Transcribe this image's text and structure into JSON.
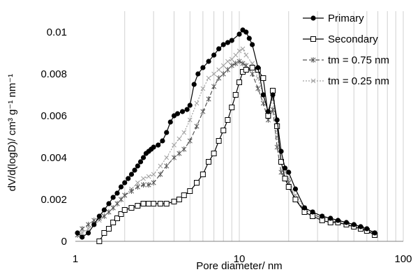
{
  "chart_data": {
    "type": "line",
    "xlabel": "Pore diameter/ nm",
    "ylabel": "dV/d(logD)/ cm³ g⁻¹ nm⁻¹",
    "x_scale": "log",
    "xlim": [
      1,
      100
    ],
    "ylim": [
      0,
      0.011
    ],
    "x_ticks": [
      "1",
      "10",
      "100"
    ],
    "y_ticks": [
      "0",
      "0.002",
      "0.004",
      "0.006",
      "0.008",
      "0.01"
    ],
    "vertical_minor_grid": true,
    "legend_position": "top-right",
    "series": [
      {
        "name": "Primary",
        "marker": "filled-circle",
        "color": "#000000",
        "line": "solid",
        "x": [
          1.03,
          1.1,
          1.2,
          1.3,
          1.4,
          1.5,
          1.6,
          1.7,
          1.8,
          1.9,
          2.0,
          2.1,
          2.2,
          2.3,
          2.4,
          2.5,
          2.6,
          2.7,
          2.8,
          2.9,
          3.0,
          3.2,
          3.4,
          3.6,
          3.8,
          4.0,
          4.2,
          4.5,
          4.8,
          5.0,
          5.3,
          5.6,
          6.0,
          6.5,
          7.0,
          7.5,
          8.0,
          8.5,
          9.0,
          10.0,
          10.5,
          11.0,
          11.5,
          12.0,
          13.0,
          14.0,
          15.0,
          16.0,
          17.0,
          18.0,
          19.0,
          20.0,
          22.0,
          25.0,
          28.0,
          32.0,
          36.0,
          40.0,
          45.0,
          50.0,
          55.0,
          60.0,
          67.0
        ],
        "y": [
          0.0004,
          0.0002,
          0.0004,
          0.0008,
          0.0012,
          0.0015,
          0.0018,
          0.0021,
          0.0023,
          0.0026,
          0.0028,
          0.003,
          0.0032,
          0.0034,
          0.0036,
          0.0038,
          0.004,
          0.0042,
          0.0043,
          0.0044,
          0.0045,
          0.0046,
          0.0048,
          0.0052,
          0.0057,
          0.006,
          0.0061,
          0.0062,
          0.0063,
          0.0065,
          0.0075,
          0.008,
          0.0083,
          0.0086,
          0.0089,
          0.0092,
          0.0094,
          0.0095,
          0.0096,
          0.0099,
          0.0101,
          0.01,
          0.0097,
          0.0094,
          0.0083,
          0.007,
          0.0062,
          0.007,
          0.0058,
          0.0043,
          0.0035,
          0.0033,
          0.0025,
          0.0016,
          0.0014,
          0.0012,
          0.0011,
          0.001,
          0.0009,
          0.0008,
          0.0007,
          0.0006,
          0.0004
        ]
      },
      {
        "name": "Secondary",
        "marker": "open-square",
        "color": "#000000",
        "line": "solid",
        "x": [
          1.4,
          1.5,
          1.6,
          1.7,
          1.8,
          1.9,
          2.0,
          2.2,
          2.4,
          2.6,
          2.8,
          3.0,
          3.3,
          3.6,
          4.0,
          4.3,
          4.6,
          5.0,
          5.5,
          6.0,
          6.5,
          7.0,
          7.5,
          8.0,
          8.5,
          9.0,
          9.5,
          10.0,
          10.5,
          11.0,
          12.0,
          13.0,
          14.0,
          15.0,
          16.0,
          17.0,
          18.0,
          19.0,
          20.0,
          22.0,
          25.0,
          28.0,
          32.0,
          36.0,
          40.0,
          45.0,
          50.0,
          55.0,
          60.0,
          67.0
        ],
        "y": [
          0.0,
          0.0004,
          0.0006,
          0.0009,
          0.0011,
          0.0013,
          0.0015,
          0.0016,
          0.0017,
          0.0018,
          0.0018,
          0.0018,
          0.0018,
          0.0018,
          0.0019,
          0.002,
          0.0022,
          0.0024,
          0.0028,
          0.0032,
          0.0038,
          0.0042,
          0.0048,
          0.0053,
          0.0058,
          0.0064,
          0.007,
          0.0076,
          0.0081,
          0.0082,
          0.0083,
          0.0082,
          0.0078,
          0.006,
          0.0072,
          0.0055,
          0.0038,
          0.003,
          0.0026,
          0.002,
          0.0014,
          0.0012,
          0.001,
          0.0009,
          0.0009,
          0.0008,
          0.0007,
          0.0006,
          0.0005,
          0.0003
        ]
      },
      {
        "name": "tm = 0.75 nm",
        "marker": "star",
        "color": "#555555",
        "line": "dashed",
        "x": [
          1.03,
          1.1,
          1.2,
          1.3,
          1.4,
          1.5,
          1.6,
          1.7,
          1.8,
          1.9,
          2.0,
          2.2,
          2.4,
          2.6,
          2.8,
          3.0,
          3.3,
          3.6,
          4.0,
          4.3,
          4.6,
          5.0,
          5.5,
          6.0,
          6.5,
          7.0,
          7.5,
          8.0,
          8.5,
          9.0,
          9.5,
          10.0,
          10.5,
          11.0,
          12.0,
          13.0,
          14.0,
          15.0,
          16.0,
          17.0,
          18.0,
          19.0,
          20.0,
          22.0,
          25.0,
          28.0,
          32.0,
          36.0,
          40.0,
          45.0,
          50.0,
          55.0,
          60.0,
          67.0
        ],
        "y": [
          0.0003,
          0.0006,
          0.0008,
          0.001,
          0.0011,
          0.0012,
          0.0014,
          0.0016,
          0.0018,
          0.002,
          0.0022,
          0.0024,
          0.0026,
          0.0027,
          0.0027,
          0.0028,
          0.0032,
          0.0036,
          0.004,
          0.0042,
          0.0044,
          0.0048,
          0.0055,
          0.0062,
          0.0068,
          0.0074,
          0.0078,
          0.008,
          0.0082,
          0.0084,
          0.0085,
          0.0086,
          0.0085,
          0.0084,
          0.008,
          0.0073,
          0.0066,
          0.0058,
          0.0063,
          0.0045,
          0.0033,
          0.003,
          0.0028,
          0.002,
          0.0015,
          0.0013,
          0.0011,
          0.001,
          0.0009,
          0.0008,
          0.0007,
          0.0006,
          0.0005,
          0.0004
        ]
      },
      {
        "name": "tm = 0.25 nm",
        "marker": "x",
        "color": "#a0a0a0",
        "line": "dotted",
        "x": [
          1.03,
          1.1,
          1.2,
          1.3,
          1.4,
          1.5,
          1.6,
          1.7,
          1.8,
          1.9,
          2.0,
          2.2,
          2.4,
          2.6,
          2.8,
          3.0,
          3.3,
          3.6,
          4.0,
          4.3,
          4.6,
          5.0,
          5.5,
          6.0,
          6.5,
          7.0,
          7.5,
          8.0,
          8.5,
          9.0,
          9.5,
          10.0,
          10.5,
          11.0,
          12.0,
          13.0,
          14.0,
          15.0,
          16.0,
          17.0,
          18.0,
          19.0,
          20.0,
          22.0,
          25.0,
          28.0,
          32.0,
          36.0,
          40.0,
          45.0,
          50.0,
          55.0,
          60.0,
          67.0
        ],
        "y": [
          0.0003,
          0.0004,
          0.0006,
          0.0008,
          0.001,
          0.0012,
          0.0014,
          0.0016,
          0.0018,
          0.002,
          0.0022,
          0.0025,
          0.0028,
          0.003,
          0.0031,
          0.0032,
          0.0036,
          0.004,
          0.0046,
          0.0049,
          0.0052,
          0.0058,
          0.0066,
          0.0073,
          0.0078,
          0.008,
          0.0082,
          0.0084,
          0.0086,
          0.0087,
          0.0089,
          0.0091,
          0.0092,
          0.0089,
          0.0085,
          0.0078,
          0.007,
          0.0062,
          0.0068,
          0.005,
          0.0038,
          0.0033,
          0.003,
          0.0022,
          0.0016,
          0.0014,
          0.0012,
          0.001,
          0.0009,
          0.0008,
          0.0007,
          0.0006,
          0.0005,
          0.0004
        ]
      }
    ]
  }
}
